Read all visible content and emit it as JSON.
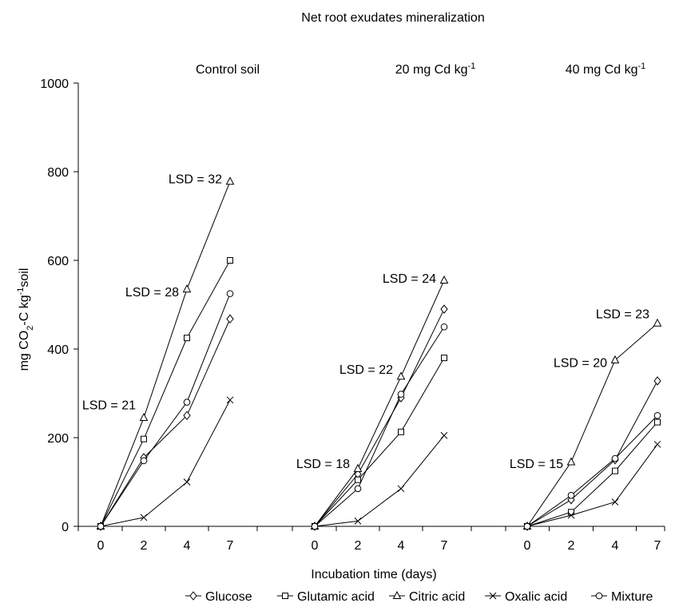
{
  "chart_data": {
    "type": "line",
    "title": "Net root exudates mineralization",
    "xlabel": "Incubation time (days)",
    "ylabel": "mg CO2-C kg-1soil",
    "ylim": [
      0,
      1000
    ],
    "yticks": [
      "0",
      "200",
      "400",
      "600",
      "800",
      "1000"
    ],
    "x": [
      "0",
      "2",
      "4",
      "7"
    ],
    "panels": [
      {
        "label_main": "Control soil",
        "label_sup": "",
        "series": [
          {
            "name": "Glucose",
            "values": [
              0,
              155,
              250,
              468
            ]
          },
          {
            "name": "Glutamic acid",
            "values": [
              0,
              197,
              425,
              600
            ]
          },
          {
            "name": "Citric acid",
            "values": [
              0,
              245,
              535,
              778
            ]
          },
          {
            "name": "Oxalic acid",
            "values": [
              0,
              20,
              100,
              285
            ]
          },
          {
            "name": "Mixture",
            "values": [
              0,
              148,
              280,
              525
            ]
          }
        ],
        "lsd": [
          {
            "text": "LSD = 21",
            "x": "2",
            "y": 275
          },
          {
            "text": "LSD = 28",
            "x": "4",
            "y": 530
          },
          {
            "text": "LSD = 32",
            "x": "7",
            "y": 785
          }
        ]
      },
      {
        "label_main": "20 mg Cd kg",
        "label_sup": "-1",
        "series": [
          {
            "name": "Glucose",
            "values": [
              0,
              118,
              290,
              490
            ]
          },
          {
            "name": "Glutamic acid",
            "values": [
              0,
              105,
              213,
              380
            ]
          },
          {
            "name": "Citric acid",
            "values": [
              0,
              130,
              338,
              555
            ]
          },
          {
            "name": "Oxalic acid",
            "values": [
              0,
              12,
              85,
              205
            ]
          },
          {
            "name": "Mixture",
            "values": [
              0,
              85,
              298,
              450
            ]
          }
        ],
        "lsd": [
          {
            "text": "LSD = 18",
            "x": "2",
            "y": 142
          },
          {
            "text": "LSD = 22",
            "x": "4",
            "y": 355
          },
          {
            "text": "LSD = 24",
            "x": "7",
            "y": 560
          }
        ]
      },
      {
        "label_main": "40 mg Cd kg",
        "label_sup": "-1",
        "series": [
          {
            "name": "Glucose",
            "values": [
              0,
              60,
              150,
              328
            ]
          },
          {
            "name": "Glutamic acid",
            "values": [
              0,
              32,
              125,
              235
            ]
          },
          {
            "name": "Citric acid",
            "values": [
              0,
              145,
              375,
              458
            ]
          },
          {
            "name": "Oxalic acid",
            "values": [
              0,
              25,
              55,
              185
            ]
          },
          {
            "name": "Mixture",
            "values": [
              0,
              70,
              153,
              250
            ]
          }
        ],
        "lsd": [
          {
            "text": "LSD = 15",
            "x": "2",
            "y": 142
          },
          {
            "text": "LSD = 20",
            "x": "4",
            "y": 370
          },
          {
            "text": "LSD = 23",
            "x": "7",
            "y": 480
          }
        ]
      }
    ],
    "legend": {
      "position": "bottom",
      "items": [
        {
          "name": "Glucose",
          "marker": "diamond"
        },
        {
          "name": "Glutamic acid",
          "marker": "square"
        },
        {
          "name": "Citric acid",
          "marker": "triangle"
        },
        {
          "name": "Oxalic acid",
          "marker": "x"
        },
        {
          "name": "Mixture",
          "marker": "circle"
        }
      ]
    },
    "error_bars": "on last points",
    "grid": false
  }
}
